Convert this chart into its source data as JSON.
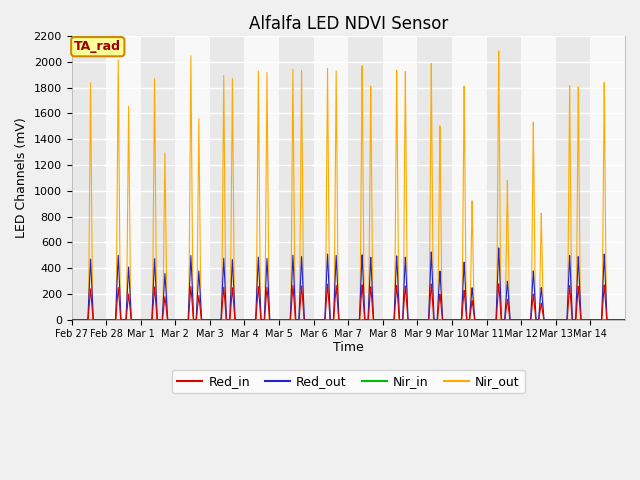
{
  "title": "Alfalfa LED NDVI Sensor",
  "ylabel": "LED Channels (mV)",
  "xlabel": "Time",
  "ylim": [
    0,
    2200
  ],
  "bg_color": "#f0f0f0",
  "plot_bg_color": "#ffffff",
  "legend_label": "TA_rad",
  "legend_bg": "#ffff99",
  "legend_border": "#cc8800",
  "legend_text_color": "#990000",
  "series_colors": {
    "Red_in": "#dd0000",
    "Red_out": "#2222cc",
    "Nir_in": "#00bb00",
    "Nir_out": "#ffaa00"
  },
  "tick_labels": [
    "Feb 27",
    "Feb 28",
    "Mar 1",
    "Mar 2",
    "Mar 3",
    "Mar 4",
    "Mar 5",
    "Mar 6",
    "Mar 7",
    "Mar 8",
    "Mar 9",
    "Mar 10",
    "Mar 11",
    "Mar 12",
    "Mar 13",
    "Mar 14"
  ],
  "num_days": 16,
  "band_colors": [
    "#e8e8e8",
    "#f8f8f8"
  ]
}
